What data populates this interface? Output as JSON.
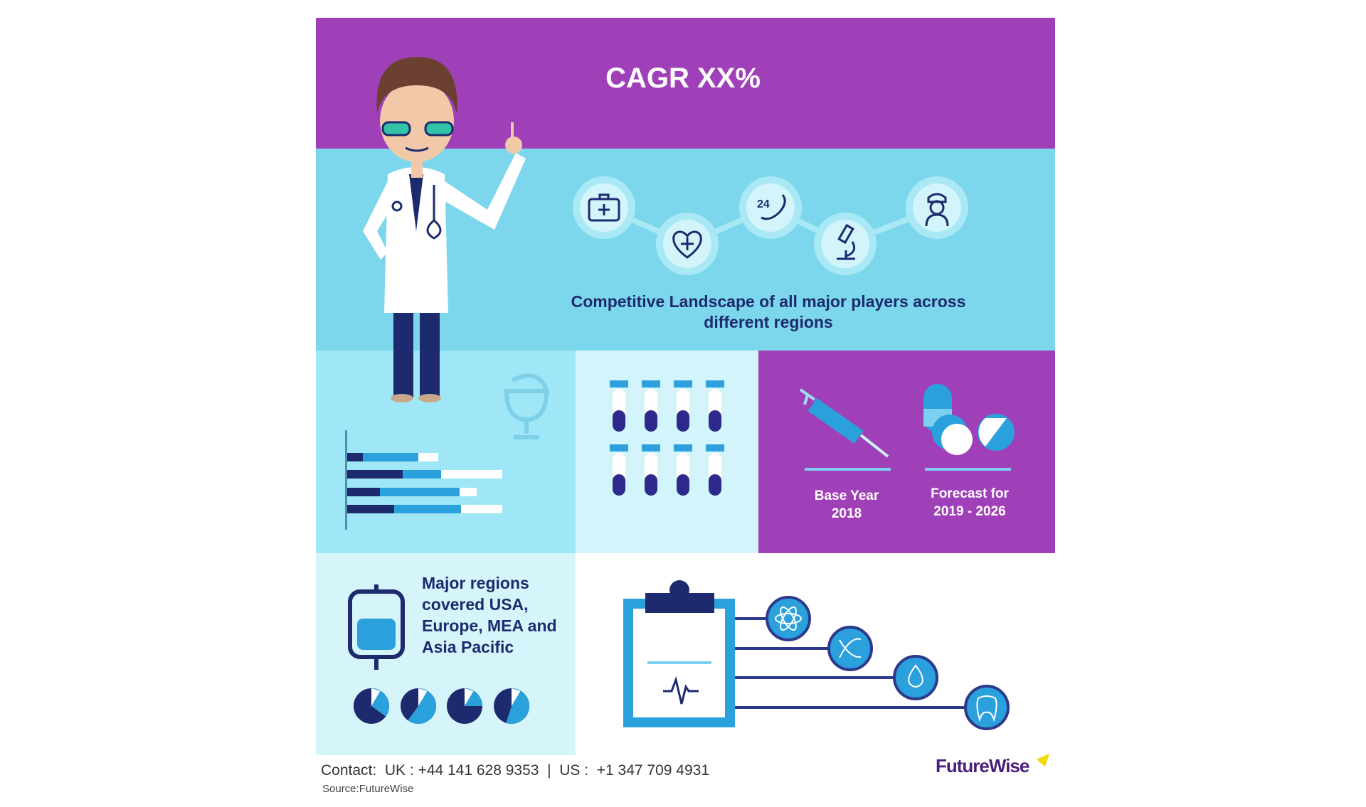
{
  "header": {
    "title": "CAGR XX%"
  },
  "band": {
    "text": "Competitive Landscape of all major players across different regions",
    "icons": [
      "first-aid-kit-icon",
      "heart-plus-icon",
      "24-hour-phone-icon",
      "microscope-icon",
      "nurse-icon"
    ],
    "phone_label": "24"
  },
  "timeline": {
    "base_label": "Base Year",
    "base_year": "2018",
    "forecast_label": "Forecast for",
    "forecast_years": "2019 - 2026"
  },
  "regions": {
    "text": "Major regions covered  USA, Europe, MEA and Asia Pacific"
  },
  "footer": {
    "contact": "Contact:  UK : +44 141 628 9353  |  US :  +1 347 709 4931",
    "source": "Source:FutureWise",
    "logo": "FutureWise"
  },
  "colors": {
    "purple": "#a040b8",
    "cyan": "#7dd7ec",
    "navy": "#1e2a6e",
    "blue": "#2aa0dc",
    "accent": "#f5d800"
  }
}
